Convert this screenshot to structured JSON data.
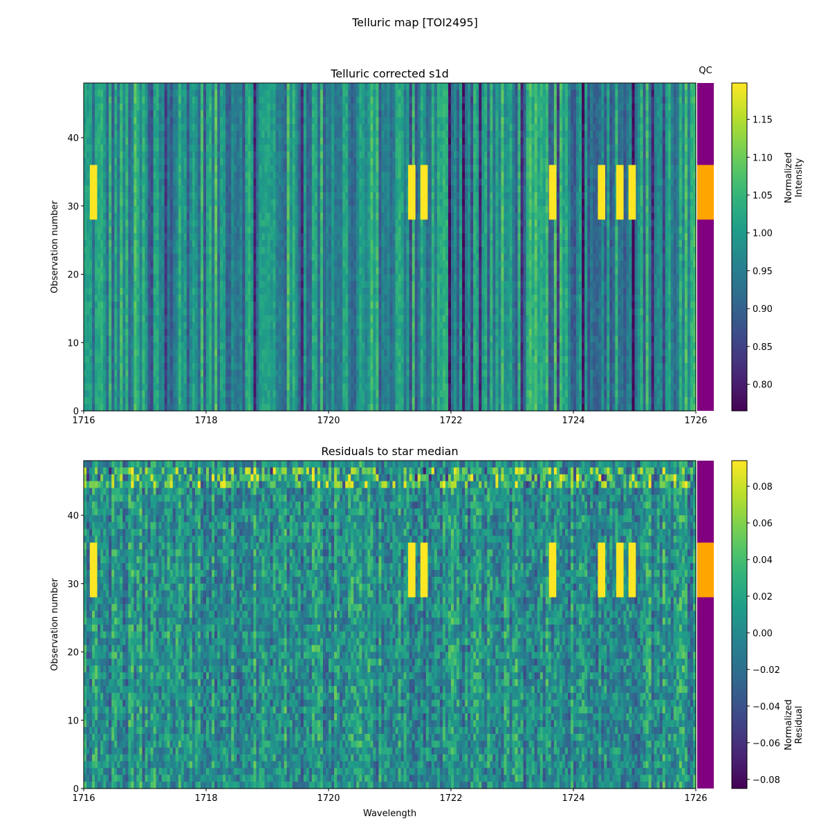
{
  "figure": {
    "title": "Telluric map [TOI2495]"
  },
  "chart_data": [
    {
      "type": "heatmap",
      "title": "Telluric corrected s1d",
      "xlabel": "",
      "ylabel": "Observation number",
      "xlim": [
        1716,
        1726
      ],
      "ylim": [
        0,
        48
      ],
      "x_ticks": [
        1716,
        1718,
        1720,
        1722,
        1724,
        1726
      ],
      "y_ticks": [
        0,
        10,
        20,
        30,
        40
      ],
      "colormap": "viridis",
      "colorbar": {
        "label_lines": [
          "Normalized",
          "Intensity"
        ],
        "vmin": 0.765,
        "vmax": 1.198,
        "ticks": [
          0.8,
          0.85,
          0.9,
          0.95,
          1.0,
          1.05,
          1.1,
          1.15
        ],
        "tick_labels": [
          "0.80",
          "0.85",
          "0.90",
          "0.95",
          "1.00",
          "1.05",
          "1.10",
          "1.15"
        ]
      },
      "qc": {
        "label": "QC",
        "segments": [
          {
            "from": 0,
            "to": 28,
            "color": "#800080"
          },
          {
            "from": 28,
            "to": 36,
            "color": "#ffa500"
          },
          {
            "from": 36,
            "to": 48,
            "color": "#800080"
          }
        ]
      }
    },
    {
      "type": "heatmap",
      "title": "Residuals to star median",
      "xlabel": "Wavelength",
      "ylabel": "Observation number",
      "xlim": [
        1716,
        1726
      ],
      "ylim": [
        0,
        48
      ],
      "x_ticks": [
        1716,
        1718,
        1720,
        1722,
        1724,
        1726
      ],
      "y_ticks": [
        0,
        10,
        20,
        30,
        40
      ],
      "colormap": "viridis",
      "colorbar": {
        "label_lines": [
          "Normalized",
          "Residual"
        ],
        "vmin": -0.085,
        "vmax": 0.094,
        "ticks": [
          -0.08,
          -0.06,
          -0.04,
          -0.02,
          0.0,
          0.02,
          0.04,
          0.06,
          0.08
        ],
        "tick_labels": [
          "−0.08",
          "−0.06",
          "−0.04",
          "−0.02",
          "0.00",
          "0.02",
          "0.04",
          "0.06",
          "0.08"
        ]
      },
      "qc": {
        "label": "",
        "segments": [
          {
            "from": 0,
            "to": 28,
            "color": "#800080"
          },
          {
            "from": 28,
            "to": 36,
            "color": "#ffa500"
          },
          {
            "from": 36,
            "to": 48,
            "color": "#800080"
          }
        ]
      }
    }
  ]
}
